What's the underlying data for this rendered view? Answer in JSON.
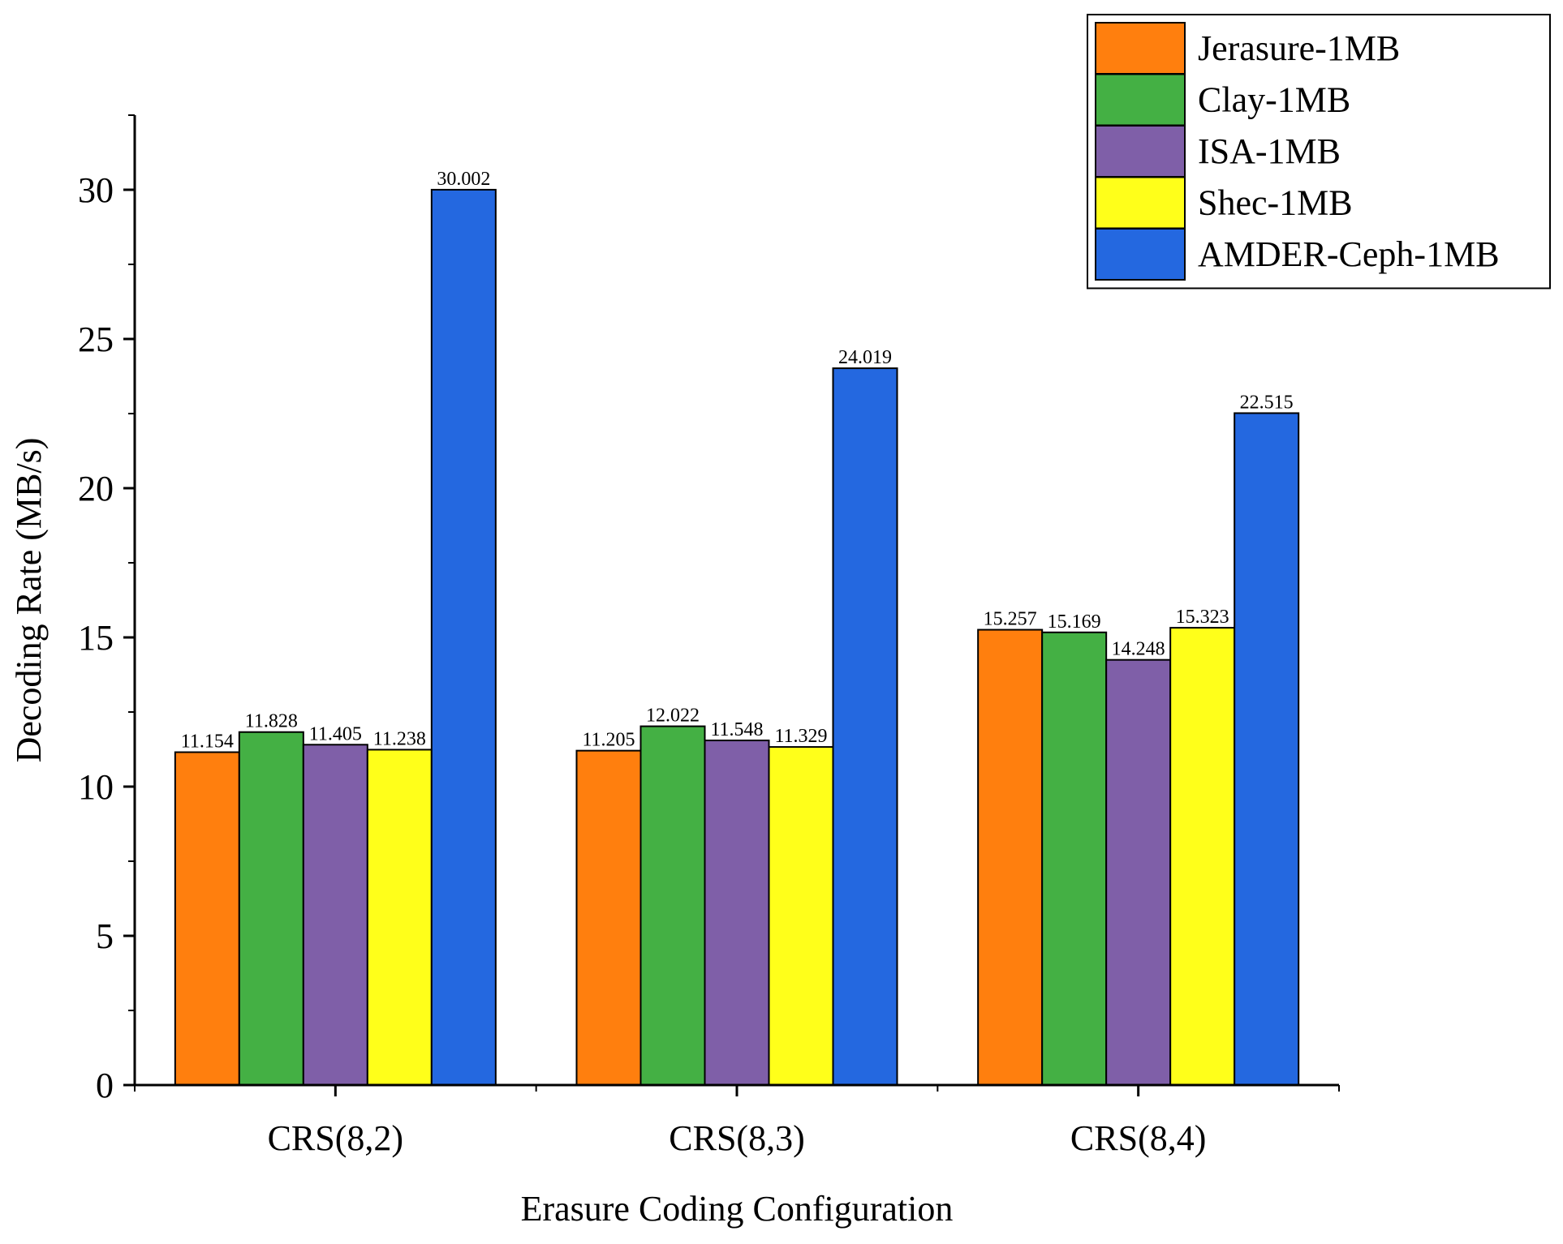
{
  "chart_data": {
    "type": "bar",
    "title": "",
    "xlabel": "Erasure Coding Configuration",
    "ylabel": "Decoding Rate (MB/s)",
    "ylim": [
      0,
      32.5
    ],
    "yticks": [
      0,
      5,
      10,
      15,
      20,
      25,
      30
    ],
    "grid": false,
    "legend_position": "top-right",
    "categories": [
      "CRS(8,2)",
      "CRS(8,3)",
      "CRS(8,4)"
    ],
    "series": [
      {
        "name": "Jerasure-1MB",
        "color": "#FF7F0E",
        "values": [
          11.154,
          11.205,
          15.257
        ],
        "labels": [
          "11.154",
          "11.205",
          "15.257"
        ]
      },
      {
        "name": "Clay-1MB",
        "color": "#44B044",
        "values": [
          11.828,
          12.022,
          15.169
        ],
        "labels": [
          "11.828",
          "12.022",
          "15.169"
        ]
      },
      {
        "name": "ISA-1MB",
        "color": "#7F5FA8",
        "values": [
          11.405,
          11.548,
          14.248
        ],
        "labels": [
          "11.405",
          "11.548",
          "14.248"
        ]
      },
      {
        "name": "Shec-1MB",
        "color": "#FFFF1A",
        "values": [
          11.238,
          11.329,
          15.323
        ],
        "labels": [
          "11.238",
          "11.329",
          "15.323"
        ]
      },
      {
        "name": "AMDER-Ceph-1MB",
        "color": "#2468E0",
        "values": [
          30.002,
          24.019,
          22.515
        ],
        "labels": [
          "30.002",
          "24.019",
          "22.515"
        ]
      }
    ]
  }
}
